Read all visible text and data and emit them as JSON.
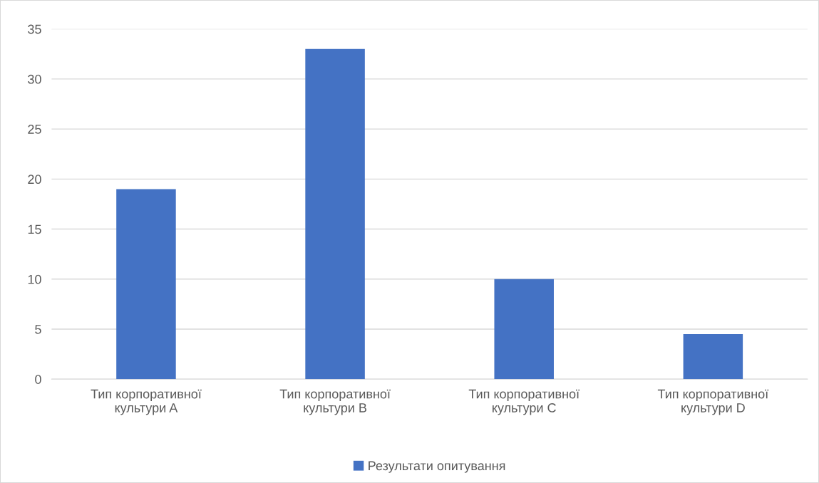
{
  "chart_data": {
    "type": "bar",
    "categories": [
      "Тип корпоративної\nкультури A",
      "Тип корпоративної\nкультури B",
      "Тип корпоративної\nкультури C",
      "Тип корпоративної\nкультури D"
    ],
    "series": [
      {
        "name": "Результати опитування",
        "color": "#4472c4",
        "values": [
          19,
          33,
          10,
          4.5
        ]
      }
    ],
    "ylim": [
      0,
      35
    ],
    "yticks": [
      0,
      5,
      10,
      15,
      20,
      25,
      30,
      35
    ],
    "grid": "y",
    "legend": "bottom"
  }
}
